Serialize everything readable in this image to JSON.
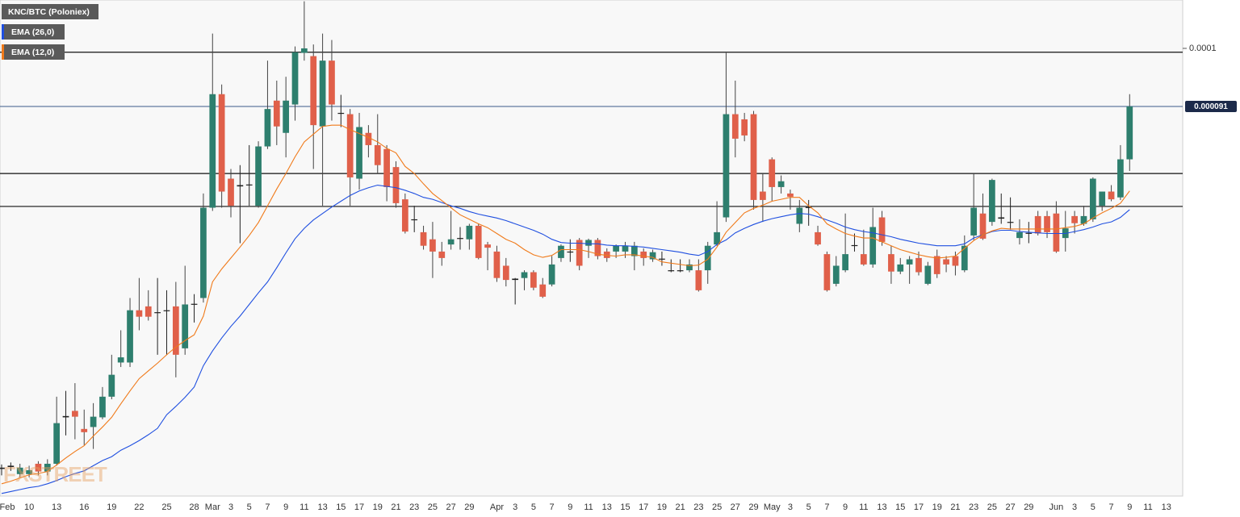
{
  "chart_data": {
    "type": "candlestick",
    "title": "KNC/BTC (Poloniex)",
    "watermark": "FXSTREET",
    "categories": [
      "Feb",
      null,
      null,
      "10",
      null,
      null,
      "13",
      null,
      null,
      "16",
      null,
      null,
      "19",
      null,
      null,
      "22",
      null,
      null,
      "25",
      null,
      null,
      "28",
      null,
      "Mar",
      null,
      "3",
      null,
      "5",
      null,
      "7",
      null,
      "9",
      null,
      "11",
      null,
      "13",
      null,
      "15",
      null,
      "17",
      null,
      "19",
      null,
      "21",
      null,
      "23",
      null,
      "25",
      null,
      "27",
      null,
      "29",
      null,
      null,
      "Apr",
      null,
      "3",
      null,
      "5",
      null,
      "7",
      null,
      "9",
      null,
      "11",
      null,
      "13",
      null,
      "15",
      null,
      "17",
      null,
      "19",
      null,
      "21",
      null,
      "23",
      null,
      "25",
      null,
      "27",
      null,
      "29",
      null,
      "May",
      null,
      "3",
      null,
      "5",
      null,
      "7",
      null,
      "9",
      null,
      "11",
      null,
      "13",
      null,
      "15",
      null,
      "17",
      null,
      "19",
      null,
      "21",
      null,
      "23",
      null,
      "25",
      null,
      "27",
      null,
      "29",
      null,
      null,
      "Jun",
      null,
      "3",
      null,
      "5",
      null,
      "7",
      null,
      "9",
      null,
      "11",
      null,
      "13",
      null
    ],
    "open": [
      3.48e-05,
      3.53e-05,
      3.4e-05,
      3.4e-05,
      3.56e-05,
      3.44e-05,
      3.56e-05,
      4.28e-05,
      4.38e-05,
      4.1e-05,
      4.13e-05,
      4.28e-05,
      4.6e-05,
      5.13e-05,
      5.13e-05,
      5.94e-05,
      6e-05,
      5.9e-05,
      5.94e-05,
      6e-05,
      5.35e-05,
      6.03e-05,
      6.13e-05,
      7.53e-05,
      9.29e-05,
      7.98e-05,
      7.88e-05,
      7.88e-05,
      7.56e-05,
      8.48e-05,
      9.19e-05,
      8.69e-05,
      9.13e-05,
      9.93e-05,
      9.88e-05,
      8.79e-05,
      9.81e-05,
      9e-05,
      8.98e-05,
      7.98e-05,
      8.69e-05,
      8.5e-05,
      8.44e-05,
      8.16e-05,
      7.66e-05,
      7.35e-05,
      7.15e-05,
      7.04e-05,
      6.85e-05,
      6.96e-05,
      7.06e-05,
      7.04e-05,
      7.25e-05,
      6.96e-05,
      6.85e-05,
      6.63e-05,
      6.43e-05,
      6.44e-05,
      6.53e-05,
      6.34e-05,
      6.34e-05,
      6.75e-05,
      6.84e-05,
      7.03e-05,
      6.94e-05,
      7.03e-05,
      6.85e-05,
      6.85e-05,
      6.85e-05,
      6.78e-05,
      6.85e-05,
      6.73e-05,
      6.73e-05,
      6.56e-05,
      6.56e-05,
      6.56e-05,
      6.56e-05,
      6.56e-05,
      6.96e-05,
      7.38e-05,
      8.98e-05,
      8.9e-05,
      8.98e-05,
      7.78e-05,
      8.28e-05,
      7.85e-05,
      7.75e-05,
      7.28e-05,
      7.53e-05,
      7.15e-05,
      6.81e-05,
      6.35e-05,
      6.56e-05,
      6.94e-05,
      6.81e-05,
      6.65e-05,
      7.38e-05,
      6.81e-05,
      6.54e-05,
      6.65e-05,
      6.75e-05,
      6.35e-05,
      6.78e-05,
      6.73e-05,
      6.78e-05,
      6.56e-05,
      7.1e-05,
      7.44e-05,
      7.31e-05,
      7.38e-05,
      7.31e-05,
      7.06e-05,
      7.13e-05,
      7.4e-05,
      7.4e-05,
      7.44e-05,
      7.06e-05,
      7.4e-05,
      7.28e-05,
      7.35e-05,
      7.56e-05,
      7.78e-05,
      7.69e-05,
      8.28e-05,
      null,
      null,
      null,
      null,
      null
    ],
    "high": [
      3.55e-05,
      3.58e-05,
      3.56e-05,
      3.53e-05,
      3.6e-05,
      3.63e-05,
      4.6e-05,
      4.69e-05,
      4.81e-05,
      4.4e-05,
      4.5e-05,
      4.75e-05,
      5.25e-05,
      5.63e-05,
      6.13e-05,
      6.44e-05,
      6.25e-05,
      6.44e-05,
      6.25e-05,
      6.38e-05,
      6.63e-05,
      6.19e-05,
      7.75e-05,
      0.0001023,
      9.44e-05,
      8.13e-05,
      8.19e-05,
      8.5e-05,
      8.56e-05,
      9.81e-05,
      9.5e-05,
      9.56e-05,
      0.0001003,
      0.0001073,
      0.0001006,
      0.0001023,
      0.0001013,
      9.28e-05,
      9.06e-05,
      9e-05,
      8.81e-05,
      8.98e-05,
      8.5e-05,
      8.25e-05,
      7.75e-05,
      7.56e-05,
      7.25e-05,
      7.31e-05,
      7e-05,
      7.48e-05,
      7.23e-05,
      7.28e-05,
      7.28e-05,
      7e-05,
      6.94e-05,
      6.75e-05,
      6.44e-05,
      6.56e-05,
      6.56e-05,
      6.44e-05,
      6.78e-05,
      6.96e-05,
      7.04e-05,
      7.06e-05,
      7.05e-05,
      7.06e-05,
      6.9e-05,
      6.96e-05,
      7e-05,
      7e-05,
      6.9e-05,
      6.88e-05,
      6.85e-05,
      6.73e-05,
      6.73e-05,
      6.73e-05,
      6.73e-05,
      7e-05,
      7.63e-05,
      9.93e-05,
      9.5e-05,
      9e-05,
      9.03e-05,
      8.06e-05,
      8.31e-05,
      8.03e-05,
      7.81e-05,
      7.65e-05,
      7.65e-05,
      7.25e-05,
      6.85e-05,
      6.78e-05,
      7.44e-05,
      7.13e-05,
      7.19e-05,
      7.53e-05,
      7.48e-05,
      6.94e-05,
      6.75e-05,
      6.78e-05,
      6.85e-05,
      6.69e-05,
      6.88e-05,
      6.78e-05,
      6.85e-05,
      7.1e-05,
      8.06e-05,
      7.75e-05,
      7.98e-05,
      7.75e-05,
      7.69e-05,
      7.35e-05,
      7.31e-05,
      7.48e-05,
      7.48e-05,
      7.63e-05,
      7.48e-05,
      7.48e-05,
      7.56e-05,
      8e-05,
      7.78e-05,
      7.88e-05,
      8.5e-05,
      9.29e-05,
      null,
      null,
      null,
      null,
      null
    ],
    "low": [
      3.38e-05,
      3.45e-05,
      3.35e-05,
      3.35e-05,
      3.38e-05,
      3.38e-05,
      3.53e-05,
      4e-05,
      3.94e-05,
      3.85e-05,
      3.79e-05,
      4.25e-05,
      4.56e-05,
      5.06e-05,
      5.06e-05,
      5.63e-05,
      5.78e-05,
      5.25e-05,
      5.25e-05,
      4.9e-05,
      5.25e-05,
      5.75e-05,
      6.06e-05,
      7.48e-05,
      7.53e-05,
      7.38e-05,
      6.98e-05,
      7.56e-05,
      7.53e-05,
      8.44e-05,
      8.5e-05,
      8.31e-05,
      8.88e-05,
      9.81e-05,
      8.13e-05,
      7.56e-05,
      8.88e-05,
      8.78e-05,
      7.56e-05,
      7.81e-05,
      8.31e-05,
      8.06e-05,
      7.63e-05,
      7.53e-05,
      7.13e-05,
      7.15e-05,
      6.88e-05,
      6.44e-05,
      6.63e-05,
      6.88e-05,
      6.88e-05,
      6.88e-05,
      6.73e-05,
      6.56e-05,
      6.38e-05,
      6.31e-05,
      6.03e-05,
      6.25e-05,
      6.25e-05,
      6.13e-05,
      6.31e-05,
      6.69e-05,
      6.69e-05,
      6.56e-05,
      6.75e-05,
      6.73e-05,
      6.69e-05,
      6.75e-05,
      6.75e-05,
      6.56e-05,
      6.63e-05,
      6.69e-05,
      6.63e-05,
      6.53e-05,
      6.53e-05,
      6.53e-05,
      6.23e-05,
      6.35e-05,
      6.94e-05,
      7.31e-05,
      8.31e-05,
      8.56e-05,
      7.5e-05,
      7.31e-05,
      7.63e-05,
      7.75e-05,
      7.5e-05,
      7.15e-05,
      7.25e-05,
      6.94e-05,
      6.23e-05,
      6.31e-05,
      6.53e-05,
      6.85e-05,
      6.63e-05,
      6.6e-05,
      6.94e-05,
      6.35e-05,
      6.5e-05,
      6.35e-05,
      6.48e-05,
      6.33e-05,
      6.44e-05,
      6.53e-05,
      6.48e-05,
      6.53e-05,
      7.03e-05,
      7.03e-05,
      7.25e-05,
      7.28e-05,
      7.19e-05,
      6.96e-05,
      6.98e-05,
      7.1e-05,
      7.06e-05,
      6.83e-05,
      6.85e-05,
      7.13e-05,
      7.25e-05,
      7.31e-05,
      7.48e-05,
      7.63e-05,
      7.65e-05,
      8.1e-05,
      null,
      null,
      null,
      null,
      null
    ],
    "close": [
      3.5e-05,
      3.51e-05,
      3.5e-05,
      3.46e-05,
      3.44e-05,
      3.56e-05,
      4.19e-05,
      4.3e-05,
      4.29e-05,
      4.05e-05,
      4.29e-05,
      4.6e-05,
      4.94e-05,
      5.21e-05,
      5.94e-05,
      5.84e-05,
      5.84e-05,
      5.91e-05,
      5.93e-05,
      5.25e-05,
      6.03e-05,
      6.04e-05,
      7.53e-05,
      9.29e-05,
      7.78e-05,
      7.56e-05,
      7.86e-05,
      7.89e-05,
      8.48e-05,
      9.06e-05,
      8.79e-05,
      9.19e-05,
      9.94e-05,
      0.0001,
      8.81e-05,
      9.81e-05,
      9.13e-05,
      8.99e-05,
      8e-05,
      8.78e-05,
      8.5e-05,
      8.19e-05,
      7.85e-05,
      7.6e-05,
      7.16e-05,
      7.34e-05,
      6.94e-05,
      6.85e-05,
      6.75e-05,
      7.04e-05,
      7.05e-05,
      7.25e-05,
      6.75e-05,
      6.91e-05,
      6.44e-05,
      6.41e-05,
      6.41e-05,
      6.53e-05,
      6.29e-05,
      6.15e-05,
      6.65e-05,
      6.94e-05,
      6.85e-05,
      6.63e-05,
      7.03e-05,
      6.78e-05,
      6.75e-05,
      6.94e-05,
      6.94e-05,
      6.94e-05,
      6.75e-05,
      6.84e-05,
      6.74e-05,
      6.55e-05,
      6.55e-05,
      6.65e-05,
      6.25e-05,
      6.94e-05,
      7.15e-05,
      8.98e-05,
      8.6e-05,
      8.65e-05,
      7.65e-05,
      7.65e-05,
      7.85e-05,
      7.94e-05,
      7.7e-05,
      7.53e-05,
      7.54e-05,
      6.96e-05,
      6.25e-05,
      6.63e-05,
      6.81e-05,
      6.95e-05,
      6.65e-05,
      7.23e-05,
      7e-05,
      6.54e-05,
      6.65e-05,
      6.73e-05,
      6.53e-05,
      6.63e-05,
      6.5e-05,
      6.65e-05,
      6.63e-05,
      6.94e-05,
      7.53e-05,
      7.05e-05,
      7.96e-05,
      7.36e-05,
      7.3e-05,
      7.15e-05,
      7.14e-05,
      7.13e-05,
      7.15e-05,
      6.85e-05,
      7.21e-05,
      7.29e-05,
      7.4e-05,
      7.98e-05,
      7.78e-05,
      7.66e-05,
      8.28e-05,
      9.1e-05,
      null,
      null,
      null,
      null,
      null
    ],
    "up_color": "#2e7f6e",
    "down_color": "#e0604a",
    "doji_color": "#222222",
    "series": [
      {
        "name": "EMA (26,0)",
        "color": "#1f4fe0",
        "values": [
          3.1e-05,
          3.13e-05,
          3.16e-05,
          3.19e-05,
          3.21e-05,
          3.25e-05,
          3.3e-05,
          3.36e-05,
          3.41e-05,
          3.45e-05,
          3.53e-05,
          3.61e-05,
          3.67e-05,
          3.77e-05,
          3.84e-05,
          3.92e-05,
          4.01e-05,
          4.11e-05,
          4.32e-05,
          4.45e-05,
          4.59e-05,
          4.75e-05,
          5.08e-05,
          5.31e-05,
          5.51e-05,
          5.69e-05,
          5.85e-05,
          6.03e-05,
          6.21e-05,
          6.38e-05,
          6.6e-05,
          6.83e-05,
          7.05e-05,
          7.21e-05,
          7.34e-05,
          7.44e-05,
          7.54e-05,
          7.63e-05,
          7.72e-05,
          7.79e-05,
          7.84e-05,
          7.88e-05,
          7.86e-05,
          7.84e-05,
          7.8e-05,
          7.75e-05,
          7.69e-05,
          7.66e-05,
          7.61e-05,
          7.56e-05,
          7.52e-05,
          7.47e-05,
          7.43e-05,
          7.4e-05,
          7.37e-05,
          7.33e-05,
          7.28e-05,
          7.23e-05,
          7.18e-05,
          7.12e-05,
          7.04e-05,
          6.99e-05,
          6.98e-05,
          6.98e-05,
          6.97e-05,
          6.97e-05,
          6.95e-05,
          6.94e-05,
          6.94e-05,
          6.93e-05,
          6.92e-05,
          6.9e-05,
          6.88e-05,
          6.86e-05,
          6.84e-05,
          6.81e-05,
          6.79e-05,
          6.85e-05,
          6.96e-05,
          7.03e-05,
          7.14e-05,
          7.21e-05,
          7.27e-05,
          7.32e-05,
          7.36e-05,
          7.39e-05,
          7.42e-05,
          7.44e-05,
          7.43e-05,
          7.39e-05,
          7.34e-05,
          7.29e-05,
          7.23e-05,
          7.19e-05,
          7.16e-05,
          7.14e-05,
          7.11e-05,
          7.08e-05,
          7.04e-05,
          7.01e-05,
          6.98e-05,
          6.96e-05,
          6.94e-05,
          6.94e-05,
          6.94e-05,
          6.97e-05,
          7.06e-05,
          7.11e-05,
          7.16e-05,
          7.18e-05,
          7.18e-05,
          7.16e-05,
          7.15e-05,
          7.14e-05,
          7.13e-05,
          7.13e-05,
          7.13e-05,
          7.16e-05,
          7.19e-05,
          7.23e-05,
          7.28e-05,
          7.31e-05,
          7.38e-05,
          7.5e-05,
          null,
          null,
          null,
          null,
          null
        ]
      },
      {
        "name": "EMA (12,0)",
        "color": "#f07a1a",
        "values": [
          3.25e-05,
          3.29e-05,
          3.34e-05,
          3.39e-05,
          3.41e-05,
          3.44e-05,
          3.54e-05,
          3.65e-05,
          3.75e-05,
          3.84e-05,
          3.99e-05,
          4.13e-05,
          4.28e-05,
          4.49e-05,
          4.69e-05,
          4.88e-05,
          5e-05,
          5.12e-05,
          5.25e-05,
          5.37e-05,
          5.47e-05,
          5.56e-05,
          5.85e-05,
          6.38e-05,
          6.58e-05,
          6.75e-05,
          6.92e-05,
          7.1e-05,
          7.3e-05,
          7.56e-05,
          7.82e-05,
          8.06e-05,
          8.32e-05,
          8.55e-05,
          8.67e-05,
          8.79e-05,
          8.81e-05,
          8.81e-05,
          8.74e-05,
          8.68e-05,
          8.62e-05,
          8.55e-05,
          8.45e-05,
          8.38e-05,
          8.17e-05,
          8.06e-05,
          7.9e-05,
          7.75e-05,
          7.64e-05,
          7.53e-05,
          7.42e-05,
          7.35e-05,
          7.28e-05,
          7.22e-05,
          7.13e-05,
          7.04e-05,
          6.98e-05,
          6.88e-05,
          6.8e-05,
          6.76e-05,
          6.79e-05,
          6.88e-05,
          6.88e-05,
          6.88e-05,
          6.85e-05,
          6.81e-05,
          6.79e-05,
          6.78e-05,
          6.8e-05,
          6.8e-05,
          6.78e-05,
          6.76e-05,
          6.69e-05,
          6.67e-05,
          6.65e-05,
          6.63e-05,
          6.64e-05,
          6.73e-05,
          6.92e-05,
          7.15e-05,
          7.3e-05,
          7.45e-05,
          7.52e-05,
          7.57e-05,
          7.63e-05,
          7.66e-05,
          7.69e-05,
          7.69e-05,
          7.56e-05,
          7.45e-05,
          7.28e-05,
          7.2e-05,
          7.13e-05,
          7.09e-05,
          7.06e-05,
          7.06e-05,
          7e-05,
          6.94e-05,
          6.88e-05,
          6.84e-05,
          6.8e-05,
          6.77e-05,
          6.75e-05,
          6.76e-05,
          6.78e-05,
          6.9e-05,
          7.02e-05,
          7.11e-05,
          7.17e-05,
          7.21e-05,
          7.2e-05,
          7.2e-05,
          7.2e-05,
          7.2e-05,
          7.2e-05,
          7.2e-05,
          7.22e-05,
          7.24e-05,
          7.28e-05,
          7.37e-05,
          7.45e-05,
          7.52e-05,
          7.6e-05,
          7.79e-05,
          null,
          null,
          null,
          null,
          null
        ]
      }
    ],
    "levels": [
      9.94e-05,
      8.06e-05,
      7.55e-05
    ],
    "level_color": "#111111",
    "last_price": 9.1e-05,
    "last_price_color": "#3b5a8a",
    "ylim": [
      3.06e-05,
      0.0001075
    ],
    "yticks": [
      0.0001
    ],
    "grid": false
  }
}
